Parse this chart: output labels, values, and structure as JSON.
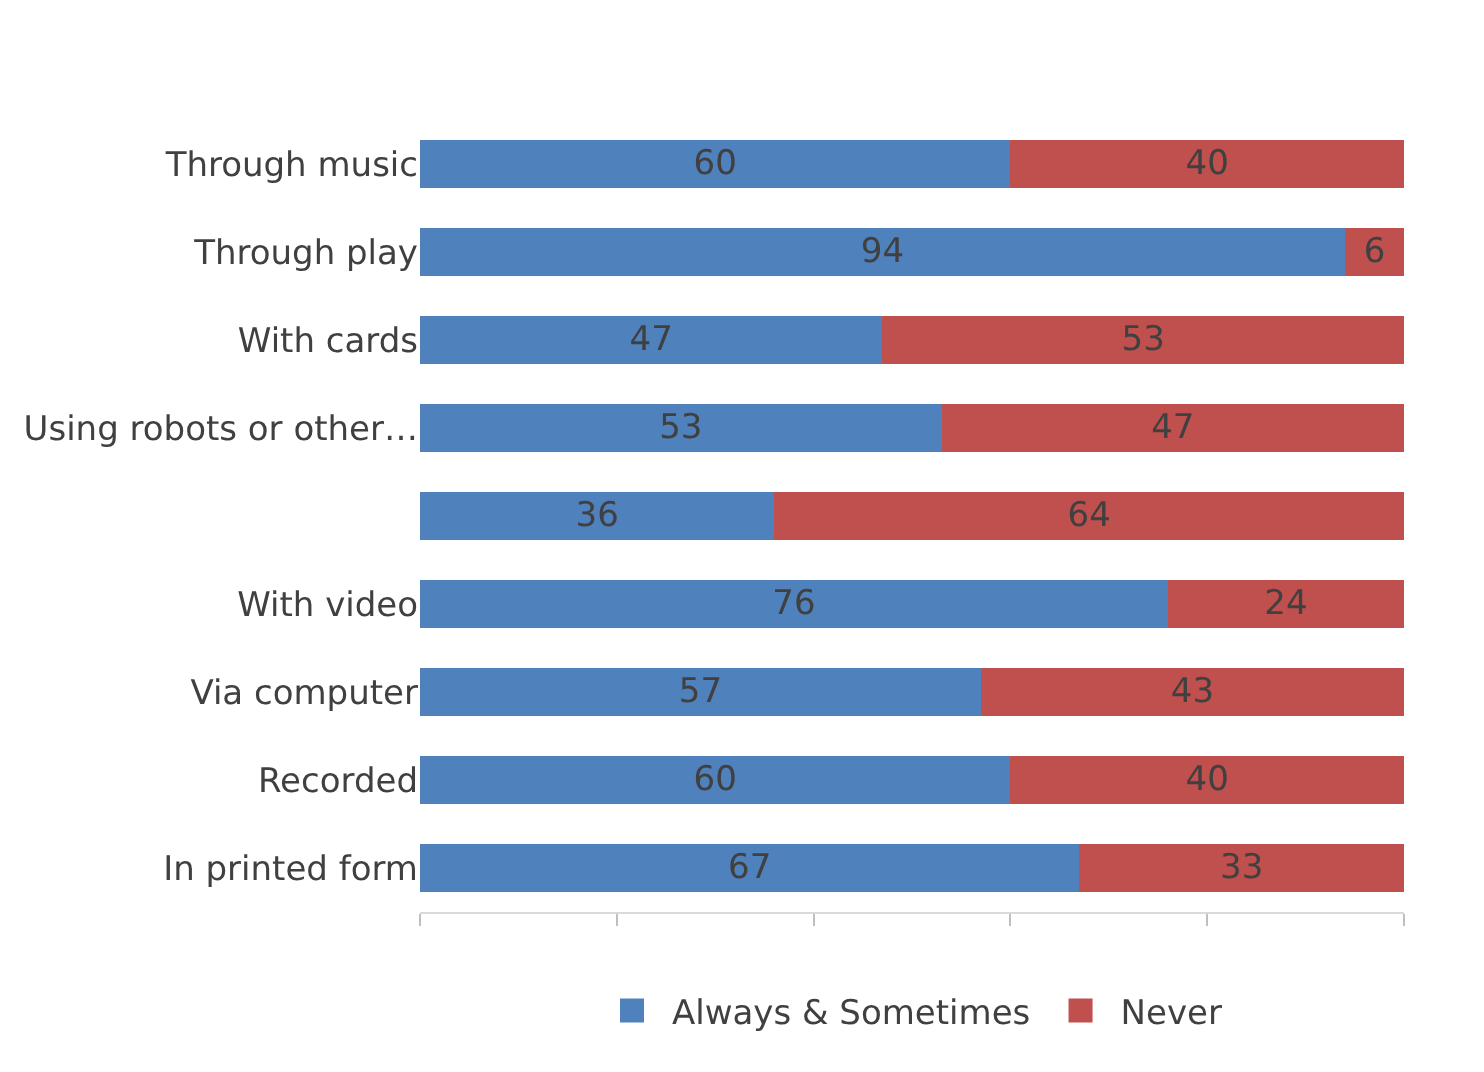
{
  "chart_data": {
    "type": "bar",
    "orientation": "horizontal",
    "stacked": true,
    "data_labels": true,
    "legend": "bottom",
    "tick_labels": "y",
    "categories": [
      "Through music",
      "Through play",
      "With cards",
      "Using robots or other…",
      null,
      "With video",
      "Via computer",
      "Recorded",
      "In printed form"
    ],
    "series": [
      {
        "name": "Always & Sometimes",
        "color": "#4f81bd",
        "values": [
          60,
          94,
          47,
          53,
          36,
          76,
          57,
          60,
          67
        ]
      },
      {
        "name": "Never",
        "color": "#c0504d",
        "values": [
          40,
          6,
          53,
          47,
          64,
          24,
          43,
          40,
          33
        ]
      }
    ],
    "xlim": [
      0,
      100
    ],
    "xticks": [
      {
        "value": 0,
        "label": null
      },
      {
        "value": 20,
        "label": null
      },
      {
        "value": 40,
        "label": null
      },
      {
        "value": 60,
        "label": null
      },
      {
        "value": 80,
        "label": null
      },
      {
        "value": 100,
        "label": null
      }
    ]
  }
}
